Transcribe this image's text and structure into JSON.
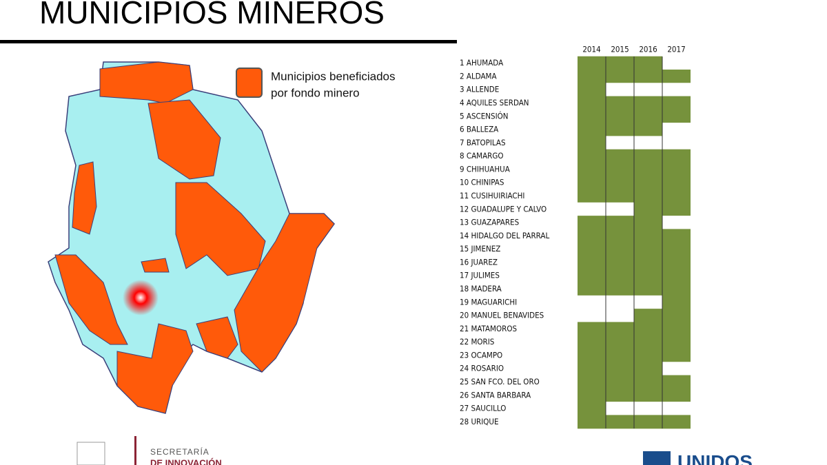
{
  "header": {
    "title": "MUNICIPIOS MINEROS"
  },
  "legend": {
    "text_line1": "Municipios beneficiados",
    "text_line2": "por fondo minero"
  },
  "table": {
    "years": [
      "2014",
      "2015",
      "2016",
      "2017"
    ],
    "rows": [
      {
        "label": "1 AHUMADA",
        "flags": [
          1,
          1,
          1,
          0
        ]
      },
      {
        "label": "2 ALDAMA",
        "flags": [
          1,
          1,
          1,
          1
        ]
      },
      {
        "label": "3 ALLENDE",
        "flags": [
          1,
          0,
          0,
          0
        ]
      },
      {
        "label": "4 AQUILES SERDAN",
        "flags": [
          1,
          1,
          1,
          1
        ]
      },
      {
        "label": "5 ASCENSIÓN",
        "flags": [
          1,
          1,
          1,
          1
        ]
      },
      {
        "label": "6 BALLEZA",
        "flags": [
          1,
          1,
          1,
          0
        ]
      },
      {
        "label": "7 BATOPILAS",
        "flags": [
          1,
          0,
          0,
          0
        ]
      },
      {
        "label": "8 CAMARGO",
        "flags": [
          1,
          1,
          1,
          1
        ]
      },
      {
        "label": "9 CHIHUAHUA",
        "flags": [
          1,
          1,
          1,
          1
        ]
      },
      {
        "label": "10 CHINIPAS",
        "flags": [
          1,
          1,
          1,
          1
        ]
      },
      {
        "label": "11 CUSIHUIRIACHI",
        "flags": [
          1,
          1,
          1,
          1
        ]
      },
      {
        "label": "12 GUADALUPE Y CALVO",
        "flags": [
          0,
          0,
          1,
          1
        ]
      },
      {
        "label": "13 GUAZAPARES",
        "flags": [
          1,
          1,
          1,
          0
        ]
      },
      {
        "label": "14 HIDALGO DEL PARRAL",
        "flags": [
          1,
          1,
          1,
          1
        ]
      },
      {
        "label": "15 JIMENEZ",
        "flags": [
          1,
          1,
          1,
          1
        ]
      },
      {
        "label": "16 JUAREZ",
        "flags": [
          1,
          1,
          1,
          1
        ]
      },
      {
        "label": "17 JULIMES",
        "flags": [
          1,
          1,
          1,
          1
        ]
      },
      {
        "label": "18 MADERA",
        "flags": [
          1,
          1,
          1,
          1
        ]
      },
      {
        "label": "19 MAGUARICHI",
        "flags": [
          0,
          0,
          0,
          1
        ]
      },
      {
        "label": "20 MANUEL BENAVIDES",
        "flags": [
          0,
          0,
          1,
          1
        ]
      },
      {
        "label": "21 MATAMOROS",
        "flags": [
          1,
          1,
          1,
          1
        ]
      },
      {
        "label": "22 MORIS",
        "flags": [
          1,
          1,
          1,
          1
        ]
      },
      {
        "label": "23 OCAMPO",
        "flags": [
          1,
          1,
          1,
          1
        ]
      },
      {
        "label": "24 ROSARIO",
        "flags": [
          1,
          1,
          1,
          0
        ]
      },
      {
        "label": "25 SAN FCO. DEL ORO",
        "flags": [
          1,
          1,
          1,
          1
        ]
      },
      {
        "label": "26 SANTA BARBARA",
        "flags": [
          1,
          1,
          1,
          1
        ]
      },
      {
        "label": "27 SAUCILLO",
        "flags": [
          1,
          0,
          0,
          0
        ]
      },
      {
        "label": "28 URIQUE",
        "flags": [
          1,
          1,
          1,
          1
        ]
      }
    ]
  },
  "footer": {
    "secretaria_line1": "SECRETARÍA",
    "secretaria_line2": "DE INNOVACIÓN",
    "brand": "UNIDOS"
  }
}
